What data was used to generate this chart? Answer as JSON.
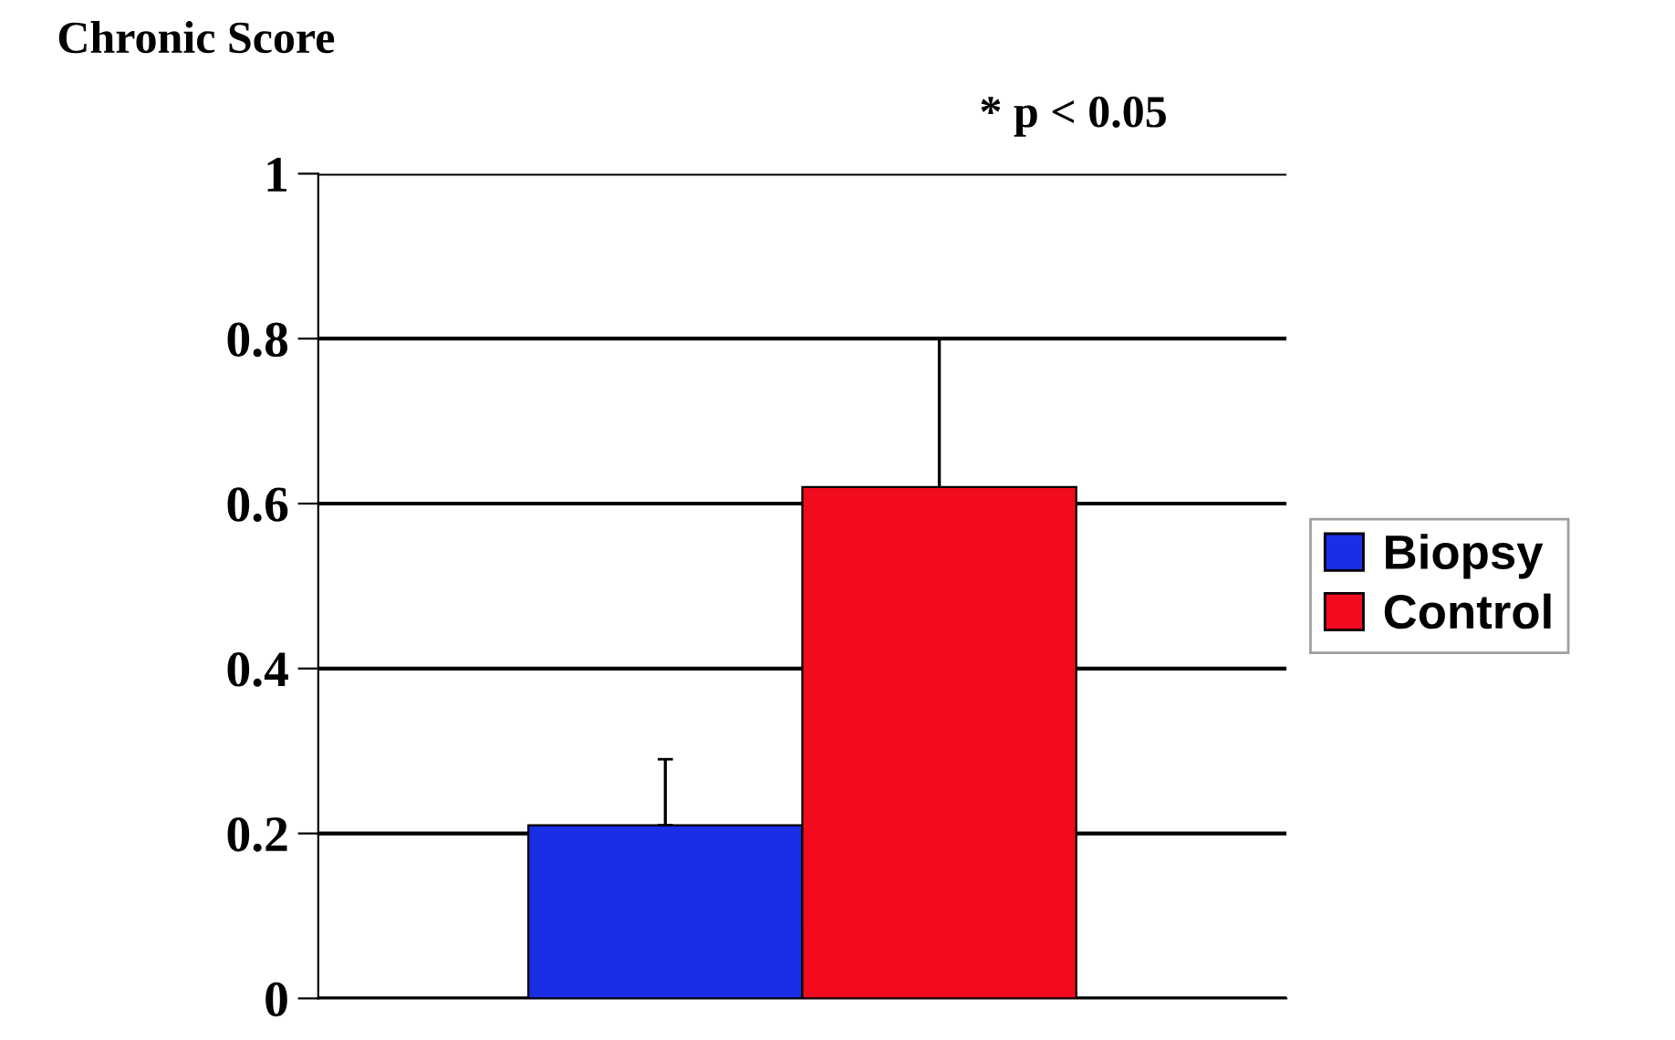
{
  "chart_data": {
    "type": "bar",
    "ylabel": "Chronic Score",
    "annotations": [
      "* p < 0.05"
    ],
    "categories": [
      null
    ],
    "series": [
      {
        "name": "Biopsy",
        "color": "#1a2ee6",
        "values": [
          0.21
        ],
        "errors": [
          [
            0.21,
            0.29
          ]
        ]
      },
      {
        "name": "Control",
        "color": "#f20a1e",
        "values": [
          0.62
        ],
        "errors": [
          [
            0.62,
            0.8
          ]
        ]
      }
    ],
    "ylim": [
      0,
      1
    ],
    "yticks": [
      0,
      0.2,
      0.4,
      0.6,
      0.8,
      1
    ],
    "grid": "y",
    "legend": "right"
  }
}
